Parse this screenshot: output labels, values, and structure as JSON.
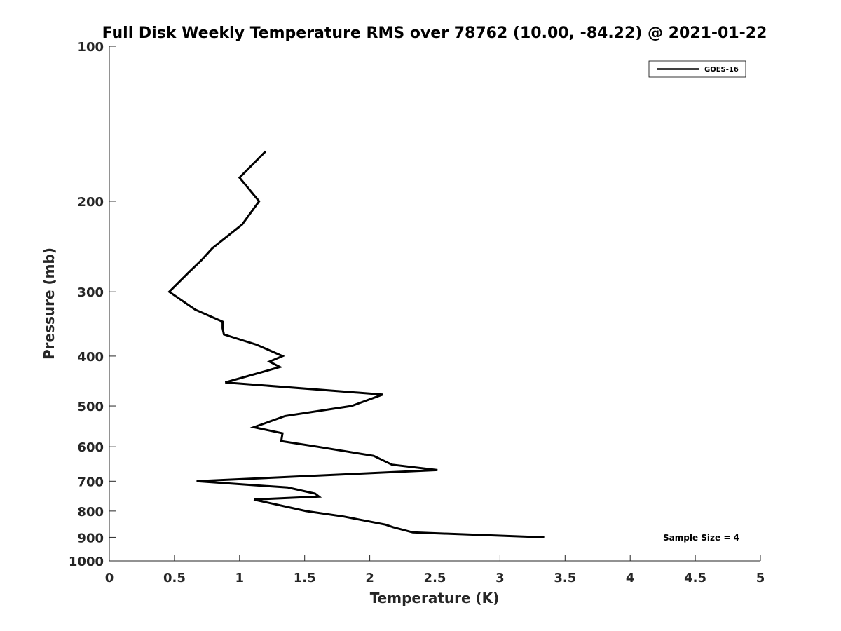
{
  "chart_data": {
    "type": "line",
    "title": "Full Disk Weekly Temperature RMS over 78762 (10.00, -84.22) @ 2021-01-22",
    "xlabel": "Temperature (K)",
    "ylabel": "Pressure (mb)",
    "xlim": [
      0,
      5
    ],
    "ylim": [
      100,
      1000
    ],
    "y_scale": "log",
    "y_reversed": true,
    "grid": false,
    "legend_position": "top-right",
    "x_ticks": [
      0,
      0.5,
      1,
      1.5,
      2,
      2.5,
      3,
      3.5,
      4,
      4.5,
      5
    ],
    "x_tick_labels": [
      "0",
      "0.5",
      "1",
      "1.5",
      "2",
      "2.5",
      "3",
      "3.5",
      "4",
      "4.5",
      "5"
    ],
    "y_ticks": [
      100,
      200,
      300,
      400,
      500,
      600,
      700,
      800,
      900,
      1000
    ],
    "y_tick_labels": [
      "100",
      "200",
      "300",
      "400",
      "500",
      "600",
      "700",
      "800",
      "900",
      "1000"
    ],
    "series": [
      {
        "name": "GOES-16",
        "color": "#000000",
        "x": [
          1.2,
          1.0,
          1.15,
          1.02,
          0.79,
          0.71,
          0.61,
          0.46,
          0.66,
          0.87,
          0.87,
          0.88,
          1.13,
          1.33,
          1.23,
          1.31,
          0.89,
          2.1,
          1.86,
          1.35,
          1.11,
          1.33,
          1.32,
          1.6,
          2.03,
          2.17,
          2.52,
          0.67,
          1.37,
          1.58,
          1.61,
          1.11,
          1.51,
          1.8,
          2.12,
          2.18,
          2.33,
          3.34
        ],
        "y": [
          160,
          180,
          200,
          222,
          247,
          260,
          275,
          300,
          325,
          343,
          353,
          363,
          380,
          400,
          410,
          420,
          450,
          475,
          500,
          523,
          550,
          565,
          585,
          600,
          625,
          650,
          666,
          700,
          720,
          740,
          750,
          760,
          800,
          820,
          850,
          860,
          880,
          900
        ]
      }
    ],
    "annotations": [
      "Sample Size = 4"
    ]
  }
}
